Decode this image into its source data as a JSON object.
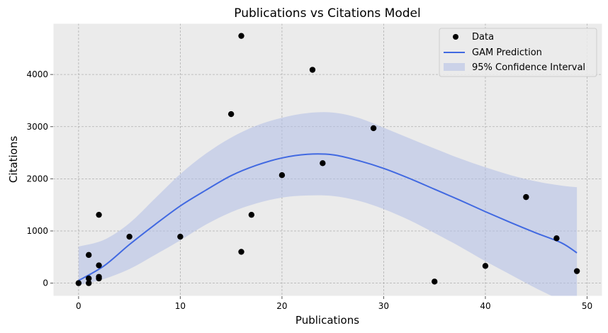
{
  "chart_data": {
    "type": "scatter",
    "title": "Publications vs Citations Model",
    "xlabel": "Publications",
    "ylabel": "Citations",
    "xlim": [
      -2.5,
      51.5
    ],
    "ylim": [
      -250,
      4980
    ],
    "xticks": [
      0,
      10,
      20,
      30,
      40,
      50
    ],
    "yticks": [
      0,
      1000,
      2000,
      3000,
      4000
    ],
    "grid": true,
    "legend_position": "top-right",
    "colors": {
      "background": "#ebebeb",
      "grid": "#b0b0b0",
      "points": "#000000",
      "line": "#4169e1",
      "band": "#b0bee6"
    },
    "series": [
      {
        "name": "Data",
        "kind": "scatter",
        "points": [
          [
            0,
            0
          ],
          [
            1,
            0
          ],
          [
            1,
            90
          ],
          [
            1,
            540
          ],
          [
            2,
            90
          ],
          [
            2,
            120
          ],
          [
            2,
            340
          ],
          [
            2,
            1310
          ],
          [
            5,
            890
          ],
          [
            10,
            890
          ],
          [
            15,
            3240
          ],
          [
            16,
            4740
          ],
          [
            16,
            600
          ],
          [
            17,
            1310
          ],
          [
            20,
            2070
          ],
          [
            23,
            4090
          ],
          [
            24,
            2300
          ],
          [
            29,
            2970
          ],
          [
            35,
            30
          ],
          [
            40,
            330
          ],
          [
            44,
            1650
          ],
          [
            47,
            860
          ],
          [
            49,
            230
          ]
        ]
      },
      {
        "name": "GAM Prediction",
        "kind": "line",
        "points": [
          [
            0,
            50
          ],
          [
            2.5,
            330
          ],
          [
            5,
            740
          ],
          [
            7.5,
            1120
          ],
          [
            10,
            1480
          ],
          [
            12.5,
            1780
          ],
          [
            15,
            2060
          ],
          [
            17.5,
            2260
          ],
          [
            20,
            2400
          ],
          [
            22.5,
            2470
          ],
          [
            25,
            2460
          ],
          [
            27.5,
            2350
          ],
          [
            30,
            2200
          ],
          [
            32.5,
            2010
          ],
          [
            35,
            1800
          ],
          [
            37.5,
            1590
          ],
          [
            40,
            1370
          ],
          [
            42.5,
            1160
          ],
          [
            45,
            960
          ],
          [
            47.5,
            770
          ],
          [
            49,
            580
          ]
        ]
      },
      {
        "name": "95% Confidence Interval",
        "kind": "band",
        "lower": [
          [
            0,
            -40
          ],
          [
            2.5,
            80
          ],
          [
            5,
            270
          ],
          [
            7.5,
            540
          ],
          [
            10,
            820
          ],
          [
            12.5,
            1120
          ],
          [
            15,
            1360
          ],
          [
            17.5,
            1530
          ],
          [
            20,
            1640
          ],
          [
            22.5,
            1680
          ],
          [
            25,
            1670
          ],
          [
            27.5,
            1580
          ],
          [
            30,
            1420
          ],
          [
            32.5,
            1210
          ],
          [
            35,
            960
          ],
          [
            37.5,
            700
          ],
          [
            40,
            420
          ],
          [
            42.5,
            160
          ],
          [
            45,
            -100
          ],
          [
            47.5,
            -340
          ],
          [
            49,
            -520
          ]
        ],
        "upper": [
          [
            0,
            700
          ],
          [
            2.5,
            830
          ],
          [
            5,
            1150
          ],
          [
            7.5,
            1620
          ],
          [
            10,
            2090
          ],
          [
            12.5,
            2480
          ],
          [
            15,
            2790
          ],
          [
            17.5,
            3020
          ],
          [
            20,
            3170
          ],
          [
            22.5,
            3260
          ],
          [
            25,
            3270
          ],
          [
            27.5,
            3170
          ],
          [
            30,
            2980
          ],
          [
            32.5,
            2780
          ],
          [
            35,
            2580
          ],
          [
            37.5,
            2390
          ],
          [
            40,
            2220
          ],
          [
            42.5,
            2070
          ],
          [
            45,
            1950
          ],
          [
            47.5,
            1870
          ],
          [
            49,
            1840
          ]
        ]
      }
    ]
  }
}
